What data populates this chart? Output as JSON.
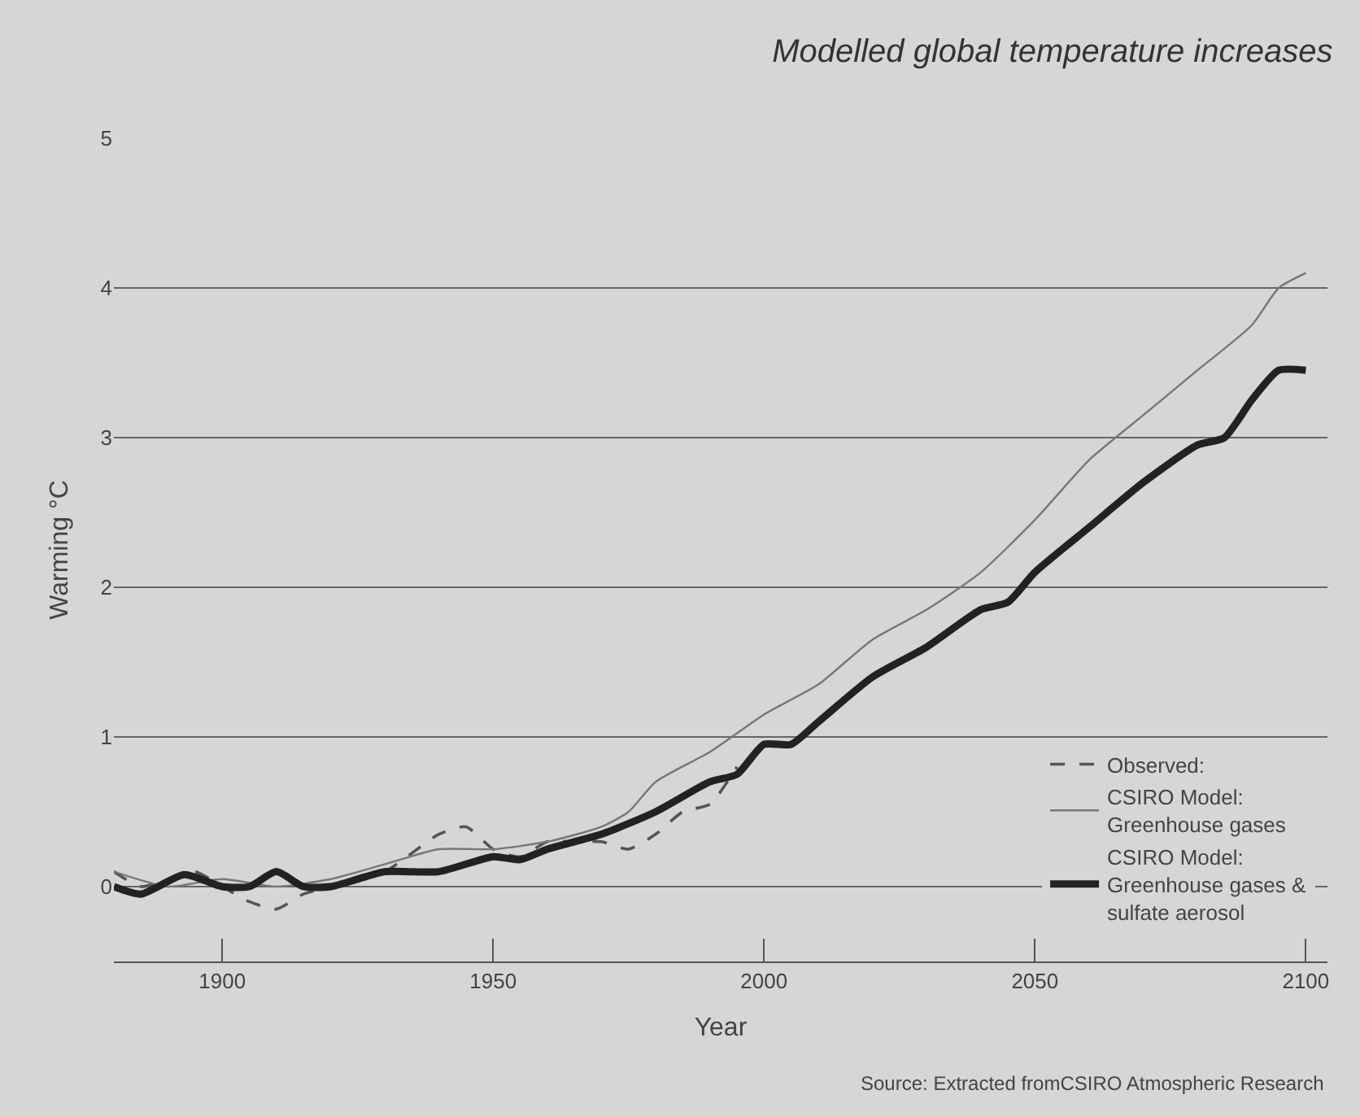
{
  "chart_data": {
    "type": "line",
    "title": "Modelled global temperature increases",
    "xlabel": "Year",
    "ylabel": "Warming °C",
    "annotations": [
      "Source: Extracted fromCSIRO Atmospheric Research"
    ],
    "xlim": [
      1880,
      2104
    ],
    "xticks": [
      1900,
      1950,
      2000,
      2050,
      2100
    ],
    "ylim": [
      -0.5,
      5
    ],
    "yticks": [
      0,
      1,
      2,
      3,
      4,
      5
    ],
    "grid": "y",
    "legend": "bottom right",
    "series": [
      {
        "name": "Observed:",
        "color": "#555555",
        "line_style": "dashed",
        "x": [
          1880,
          1885,
          1890,
          1895,
          1900,
          1905,
          1910,
          1915,
          1920,
          1930,
          1940,
          1945,
          1950,
          1955,
          1960,
          1965,
          1970,
          1975,
          1980,
          1985,
          1990,
          1995
        ],
        "values": [
          0.1,
          0.0,
          0.05,
          0.1,
          0.0,
          -0.1,
          -0.15,
          -0.05,
          0.0,
          0.1,
          0.35,
          0.4,
          0.25,
          0.2,
          0.3,
          0.3,
          0.3,
          0.25,
          0.35,
          0.5,
          0.55,
          0.8
        ]
      },
      {
        "name": "CSIRO Model:\nGreenhouse gases",
        "color": "#777777",
        "line_style": "solid",
        "x": [
          1880,
          1890,
          1900,
          1910,
          1920,
          1930,
          1940,
          1950,
          1960,
          1970,
          1975,
          1980,
          1990,
          2000,
          2010,
          2020,
          2030,
          2040,
          2050,
          2060,
          2070,
          2080,
          2090,
          2095,
          2100
        ],
        "values": [
          0.1,
          0.0,
          0.05,
          0.0,
          0.05,
          0.15,
          0.25,
          0.25,
          0.3,
          0.4,
          0.5,
          0.7,
          0.9,
          1.15,
          1.35,
          1.65,
          1.85,
          2.1,
          2.45,
          2.85,
          3.15,
          3.45,
          3.75,
          4.0,
          4.1
        ]
      },
      {
        "name": "CSIRO Model:\nGreenhouse gases &\nsulfate aerosol",
        "color": "#222222",
        "line_style": "solid",
        "x": [
          1880,
          1885,
          1893,
          1900,
          1905,
          1910,
          1915,
          1920,
          1925,
          1930,
          1940,
          1950,
          1955,
          1960,
          1970,
          1980,
          1990,
          1995,
          2000,
          2005,
          2010,
          2020,
          2030,
          2040,
          2045,
          2050,
          2060,
          2070,
          2080,
          2085,
          2090,
          2095,
          2100
        ],
        "values": [
          0.0,
          -0.05,
          0.08,
          0.0,
          0.0,
          0.1,
          0.0,
          0.0,
          0.05,
          0.1,
          0.1,
          0.2,
          0.18,
          0.25,
          0.35,
          0.5,
          0.7,
          0.75,
          0.95,
          0.95,
          1.1,
          1.4,
          1.6,
          1.85,
          1.9,
          2.1,
          2.4,
          2.7,
          2.95,
          3.0,
          3.25,
          3.45,
          3.45
        ]
      }
    ]
  }
}
